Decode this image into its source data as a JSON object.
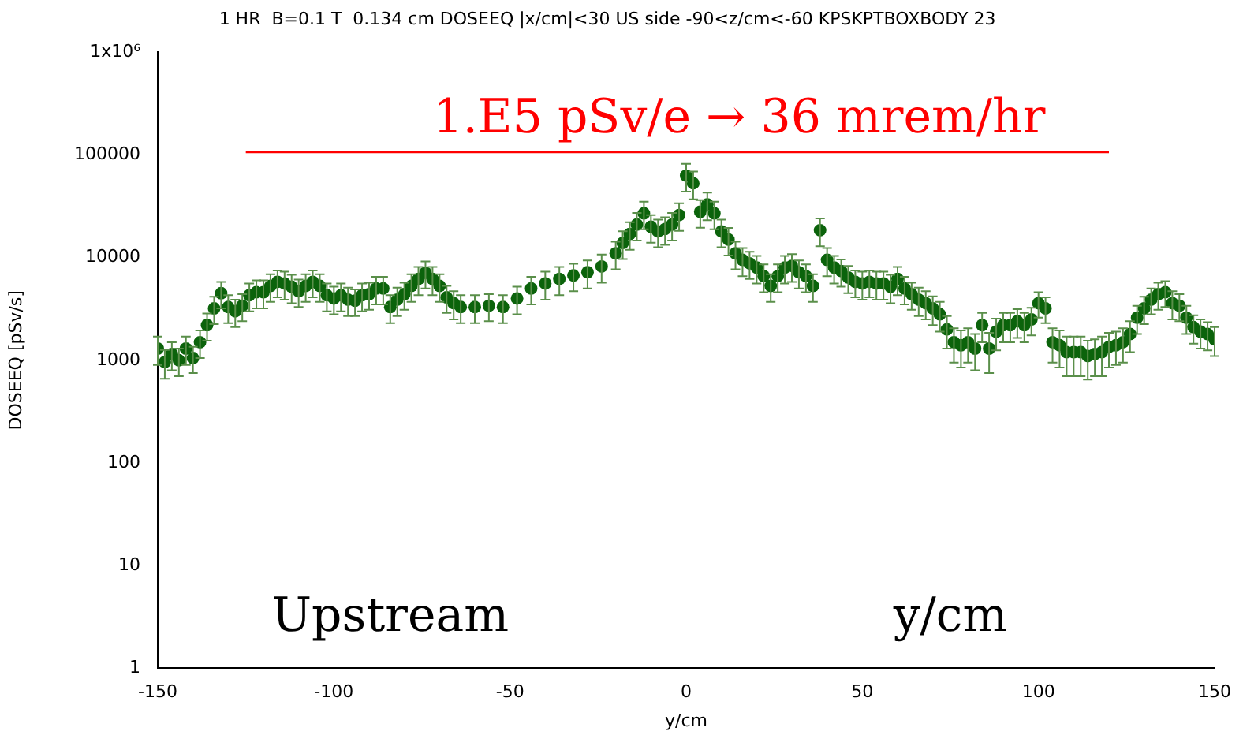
{
  "chart_data": {
    "type": "scatter",
    "title": "1 HR  B=0.1 T  0.134 cm DOSEEQ |x/cm|<30 US side -90<z/cm<-60 KPSKPTBOXBODY 23",
    "xlabel": "y/cm",
    "ylabel": "DOSEEQ [pSv/s]",
    "log": "y",
    "grid": false,
    "legend": false,
    "marker": "circle",
    "xlim": [
      -150,
      150
    ],
    "xticks": [
      -150,
      -100,
      -50,
      0,
      50,
      100,
      150
    ],
    "ylim": [
      1,
      1000000
    ],
    "yticks": [
      1,
      10,
      100,
      1000,
      10000,
      100000,
      {
        "value": 1000000,
        "label": "1x10⁶"
      }
    ],
    "annotations": [
      "1.E5 pSv/e → 36 mrem/hr",
      "Upstream",
      "y/cm"
    ],
    "series": [
      {
        "color": "#0b630b",
        "x": [
          -150,
          -148,
          -146,
          -144,
          -142,
          -140,
          -138,
          -136,
          -134,
          -132,
          -130,
          -128,
          -126,
          -124,
          -122,
          -120,
          -118,
          -116,
          -114,
          -112,
          -110,
          -108,
          -106,
          -104,
          -102,
          -100,
          -98,
          -96,
          -94,
          -92,
          -90,
          -88,
          -86,
          -84,
          -82,
          -80,
          -78,
          -76,
          -74,
          -72,
          -70,
          -68,
          -66,
          -64,
          -60,
          -56,
          -52,
          -48,
          -44,
          -40,
          -36,
          -32,
          -28,
          -24,
          -20,
          -18,
          -16,
          -14,
          -12,
          -10,
          -8,
          -6,
          -4,
          -2,
          0,
          2,
          4,
          6,
          8,
          10,
          12,
          14,
          16,
          18,
          20,
          22,
          24,
          26,
          28,
          30,
          32,
          34,
          36,
          38,
          40,
          42,
          44,
          46,
          48,
          50,
          52,
          54,
          56,
          58,
          60,
          62,
          64,
          66,
          68,
          70,
          72,
          74,
          76,
          78,
          80,
          82,
          84,
          86,
          88,
          90,
          92,
          94,
          96,
          98,
          100,
          102,
          104,
          106,
          108,
          110,
          112,
          114,
          116,
          118,
          120,
          122,
          124,
          126,
          128,
          130,
          132,
          134,
          136,
          138,
          140,
          142,
          144,
          146,
          148,
          150
        ],
        "values": [
          1300,
          960,
          1150,
          1000,
          1300,
          1050,
          1500,
          2200,
          3200,
          4500,
          3300,
          3000,
          3400,
          4300,
          4600,
          4600,
          5300,
          5800,
          5600,
          5200,
          4700,
          5300,
          5800,
          5300,
          4300,
          4000,
          4300,
          3900,
          3800,
          4300,
          4400,
          5000,
          5000,
          3300,
          3900,
          4400,
          5300,
          6200,
          7100,
          6200,
          5300,
          4100,
          3600,
          3300,
          3300,
          3400,
          3300,
          4000,
          5000,
          5600,
          6200,
          6700,
          7200,
          8200,
          11000,
          13900,
          17000,
          21000,
          27000,
          20000,
          18000,
          19000,
          21000,
          26000,
          63000,
          53000,
          28000,
          33000,
          27000,
          18000,
          15000,
          11000,
          9500,
          8800,
          8000,
          6600,
          5300,
          6600,
          8000,
          8300,
          7200,
          6600,
          5300,
          18500,
          9500,
          8000,
          7400,
          6400,
          5800,
          5600,
          5800,
          5600,
          5600,
          5200,
          6200,
          5000,
          4400,
          3900,
          3600,
          3200,
          2800,
          2000,
          1500,
          1400,
          1500,
          1300,
          2200,
          1300,
          1900,
          2200,
          2200,
          2400,
          2200,
          2500,
          3600,
          3200,
          1500,
          1400,
          1200,
          1200,
          1200,
          1100,
          1150,
          1200,
          1350,
          1400,
          1500,
          1800,
          2600,
          3200,
          3900,
          4400,
          4600,
          3600,
          3400,
          2600,
          2100,
          1900,
          1800,
          1600
        ],
        "errors": [
          400,
          300,
          350,
          300,
          400,
          300,
          450,
          650,
          950,
          1300,
          1000,
          900,
          1000,
          1300,
          1400,
          1400,
          1600,
          1700,
          1700,
          1600,
          1400,
          1600,
          1700,
          1600,
          1300,
          1200,
          1300,
          1200,
          1100,
          1300,
          1300,
          1500,
          1500,
          1000,
          1200,
          1300,
          1600,
          1900,
          2100,
          1900,
          1600,
          1200,
          1100,
          1000,
          1000,
          1000,
          1000,
          1200,
          1500,
          1700,
          1900,
          2000,
          2200,
          2500,
          3300,
          4200,
          5100,
          6300,
          8100,
          6000,
          5400,
          5700,
          6300,
          7800,
          19000,
          16000,
          8400,
          9900,
          8100,
          5400,
          4500,
          3300,
          2900,
          2600,
          2400,
          2000,
          1600,
          2000,
          2400,
          2500,
          2200,
          2000,
          1600,
          5600,
          2900,
          2400,
          2200,
          1900,
          1700,
          1700,
          1700,
          1700,
          1700,
          1600,
          1900,
          1500,
          1300,
          1200,
          1100,
          1000,
          900,
          700,
          550,
          550,
          550,
          500,
          700,
          550,
          650,
          700,
          700,
          750,
          700,
          750,
          1000,
          900,
          550,
          550,
          500,
          500,
          500,
          450,
          450,
          500,
          500,
          500,
          550,
          600,
          800,
          950,
          1100,
          1300,
          1300,
          1100,
          1000,
          800,
          650,
          600,
          550,
          500
        ]
      },
      {
        "type": "line",
        "color": "#ff0000",
        "marker": "none",
        "line_style": "solid",
        "x": [
          -125,
          120
        ],
        "values": [
          107000,
          107000
        ]
      }
    ]
  }
}
